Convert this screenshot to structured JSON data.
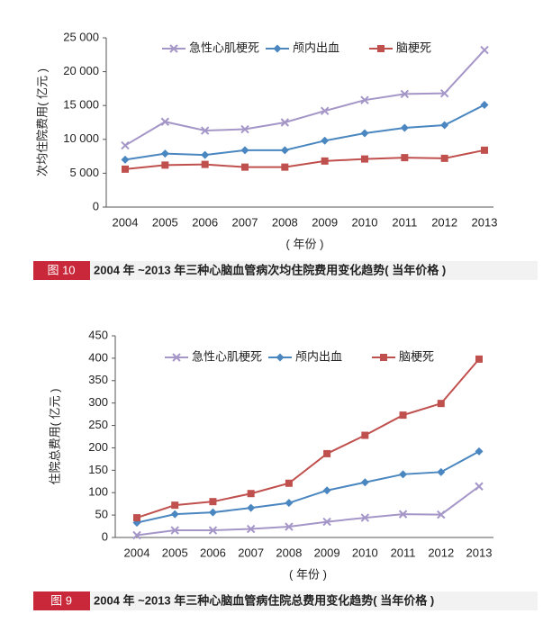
{
  "chart_data": [
    {
      "type": "line",
      "y_label": "次均住院费用( 亿元 )",
      "x_label": "( 年份 )",
      "figure_label": "图 10",
      "caption": "2004 年 ~2013 年三种心脑血管病次均住院费用变化趋势( 当年价格 )",
      "categories": [
        "2004",
        "2005",
        "2006",
        "2007",
        "2008",
        "2009",
        "2010",
        "2011",
        "2012",
        "2013"
      ],
      "ylim": [
        0,
        25000
      ],
      "yticks": [
        0,
        {
          "value": 5000,
          "label": "5 000"
        },
        {
          "value": 10000,
          "label": "10 000"
        },
        {
          "value": 15000,
          "label": "15 000"
        },
        {
          "value": 20000,
          "label": "20 000"
        },
        {
          "value": 25000,
          "label": "25 000"
        }
      ],
      "series": [
        {
          "name": "急性心肌梗死",
          "color": "#a596c8",
          "marker": "x",
          "values": [
            9100,
            12600,
            11300,
            11500,
            12500,
            14200,
            15800,
            16700,
            16800,
            23200
          ]
        },
        {
          "name": "颅内出血",
          "color": "#4a86c0",
          "marker": "diamond",
          "values": [
            7000,
            7900,
            7700,
            8400,
            8400,
            9800,
            10900,
            11700,
            12100,
            15100
          ]
        },
        {
          "name": "脑梗死",
          "color": "#c0504d",
          "marker": "square",
          "values": [
            5600,
            6200,
            6300,
            5900,
            5900,
            6800,
            7100,
            7300,
            7200,
            8400
          ]
        }
      ]
    },
    {
      "type": "line",
      "y_label": "住院总费用( 亿元 )",
      "x_label": "( 年份 )",
      "figure_label": "图 9",
      "caption": "2004 年 ~2013 年三种心脑血管病住院总费用变化趋势( 当年价格 )",
      "categories": [
        "2004",
        "2005",
        "2006",
        "2007",
        "2008",
        "2009",
        "2010",
        "2011",
        "2012",
        "2013"
      ],
      "ylim": [
        0,
        450
      ],
      "yticks": [
        0,
        50,
        100,
        150,
        200,
        250,
        300,
        350,
        400,
        450
      ],
      "series": [
        {
          "name": "急性心肌梗死",
          "color": "#a596c8",
          "marker": "x",
          "values": [
            5,
            16,
            16,
            19,
            24,
            35,
            44,
            52,
            51,
            114
          ]
        },
        {
          "name": "颅内出血",
          "color": "#4a86c0",
          "marker": "diamond",
          "values": [
            33,
            52,
            56,
            66,
            77,
            105,
            123,
            141,
            146,
            192
          ]
        },
        {
          "name": "脑梗死",
          "color": "#c0504d",
          "marker": "square",
          "values": [
            44,
            72,
            80,
            98,
            121,
            187,
            228,
            273,
            299,
            398
          ]
        }
      ]
    }
  ]
}
